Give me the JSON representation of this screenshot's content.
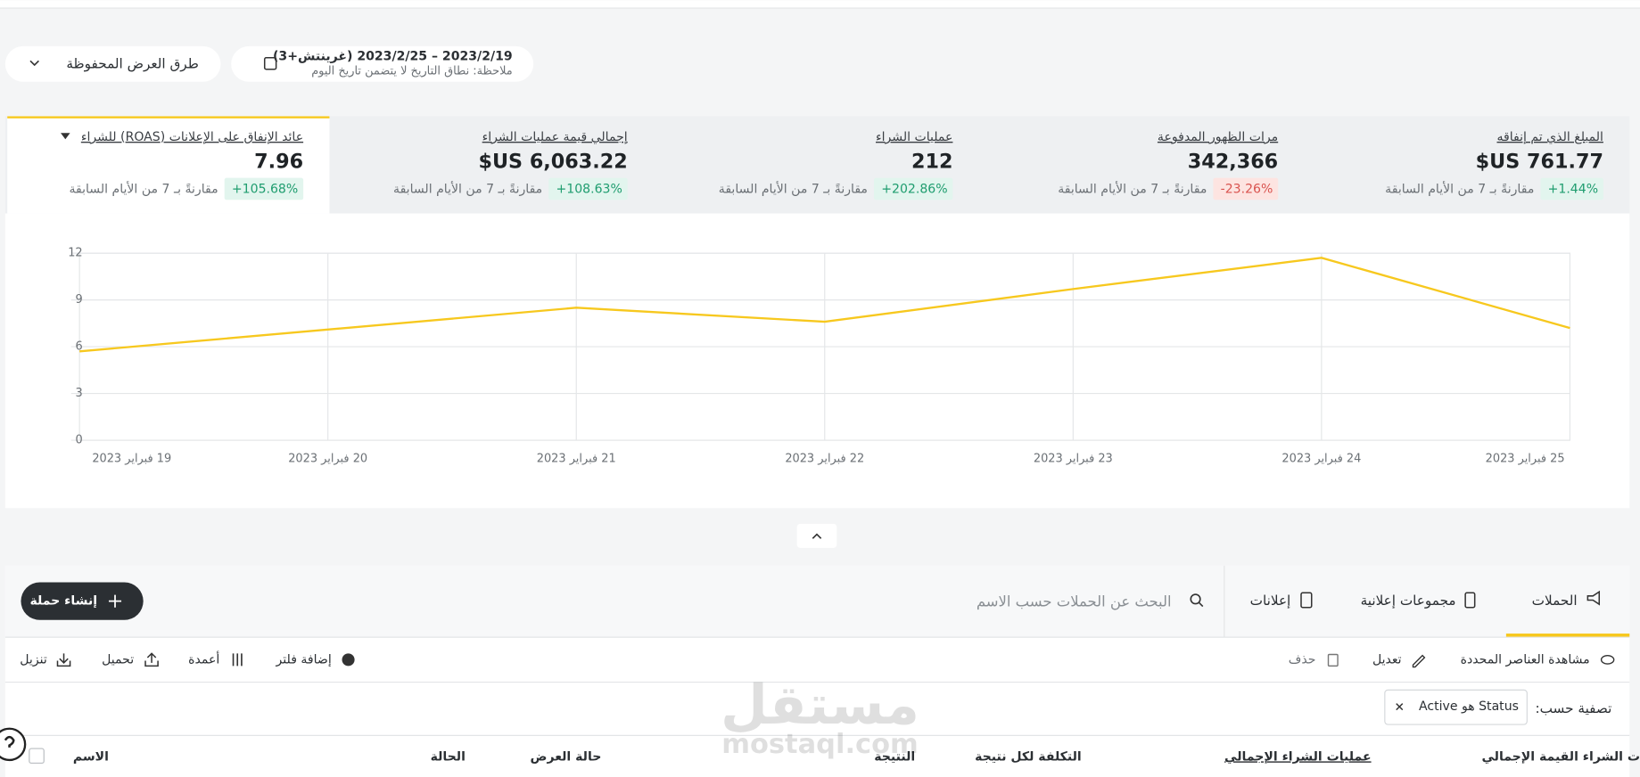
{
  "header": {
    "saved_views": "طرق العرض المحفوظة",
    "date_range": "2023/2/19 – 2023/2/25 (غرينتش+3)",
    "date_note": "ملاحظة: نطاق التاريخ لا يتضمن تاريخ اليوم"
  },
  "kpis": [
    {
      "label": "المبلغ الذي تم إنفاقه",
      "value": "$US 761.77",
      "change": "+1.44%",
      "compare": "مقارنةً بـ 7 من الأيام السابقة"
    },
    {
      "label": "مرات الظهور المدفوعة",
      "value": "342,366",
      "change": "-23.26%",
      "compare": "مقارنةً بـ 7 من الأيام السابقة"
    },
    {
      "label": "عمليات الشراء",
      "value": "212",
      "change": "+202.86%",
      "compare": "مقارنةً بـ 7 من الأيام السابقة"
    },
    {
      "label": "إجمالي قيمة عمليات الشراء",
      "value": "$US 6,063.22",
      "change": "+108.63%",
      "compare": "مقارنةً بـ 7 من الأيام السابقة"
    },
    {
      "label": "عائد الإنفاق على الإعلانات (ROAS) للشراء",
      "value": "7.96",
      "change": "+105.68%",
      "compare": "مقارنةً بـ 7 من الأيام السابقة"
    }
  ],
  "chart_data": {
    "type": "line",
    "categories": [
      "19 فبراير 2023",
      "20 فبراير 2023",
      "21 فبراير 2023",
      "22 فبراير 2023",
      "23 فبراير 2023",
      "24 فبراير 2023",
      "25 فبراير 2023"
    ],
    "values": [
      5.7,
      7.1,
      8.5,
      7.6,
      9.7,
      11.7,
      7.2
    ],
    "color": "#f7c81e",
    "ylim": [
      0,
      12
    ],
    "yticks": [
      0,
      3,
      6,
      9,
      12
    ],
    "grid": true
  },
  "tabs": [
    "الحملات",
    "مجموعات إعلانية",
    "إعلانات"
  ],
  "search_placeholder": "البحث عن الحملات حسب الاسم",
  "create_button": "إنشاء حملة",
  "toolbar": {
    "view_selected": "مشاهدة العناصر المحددة",
    "edit": "تعديل",
    "delete": "حذف",
    "add_filter": "إضافة فلتر",
    "columns": "أعمدة",
    "upload": "تحميل",
    "download": "تنزيل"
  },
  "filter": {
    "label": "تصفية حسب:",
    "chip": "Status هو Active"
  },
  "table_headers": [
    "ت الشراء القيمة الإجمالي",
    "عمليات الشراء الإجمالي",
    "التكلفة لكل نتيجة",
    "النتيجة",
    "حالة العرض",
    "الحالة",
    "الاسم"
  ],
  "watermark": {
    "arabic": "مستقل",
    "latin": "mostaql.com"
  }
}
